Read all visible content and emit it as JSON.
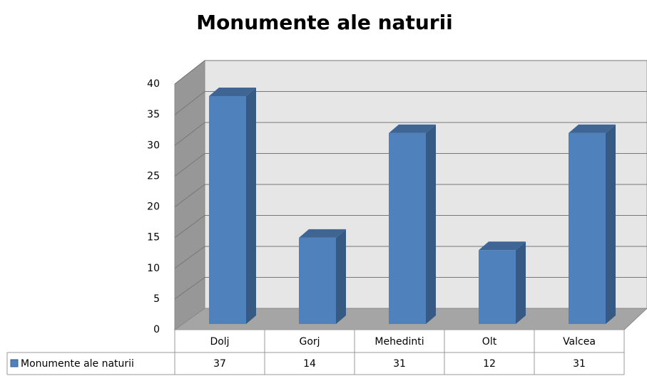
{
  "chart_data": {
    "type": "bar3d",
    "title": "Monumente ale naturii",
    "categories": [
      "Dolj",
      "Gorj",
      "Mehedinti",
      "Olt",
      "Valcea"
    ],
    "series": [
      {
        "name": "Monumente ale naturii",
        "color": "#4f81bd",
        "values": [
          37,
          14,
          31,
          12,
          31
        ]
      }
    ],
    "ylim": [
      0,
      40
    ],
    "yticks": [
      0,
      5,
      10,
      15,
      20,
      25,
      30,
      35,
      40
    ],
    "grid": true,
    "data_table": true
  }
}
